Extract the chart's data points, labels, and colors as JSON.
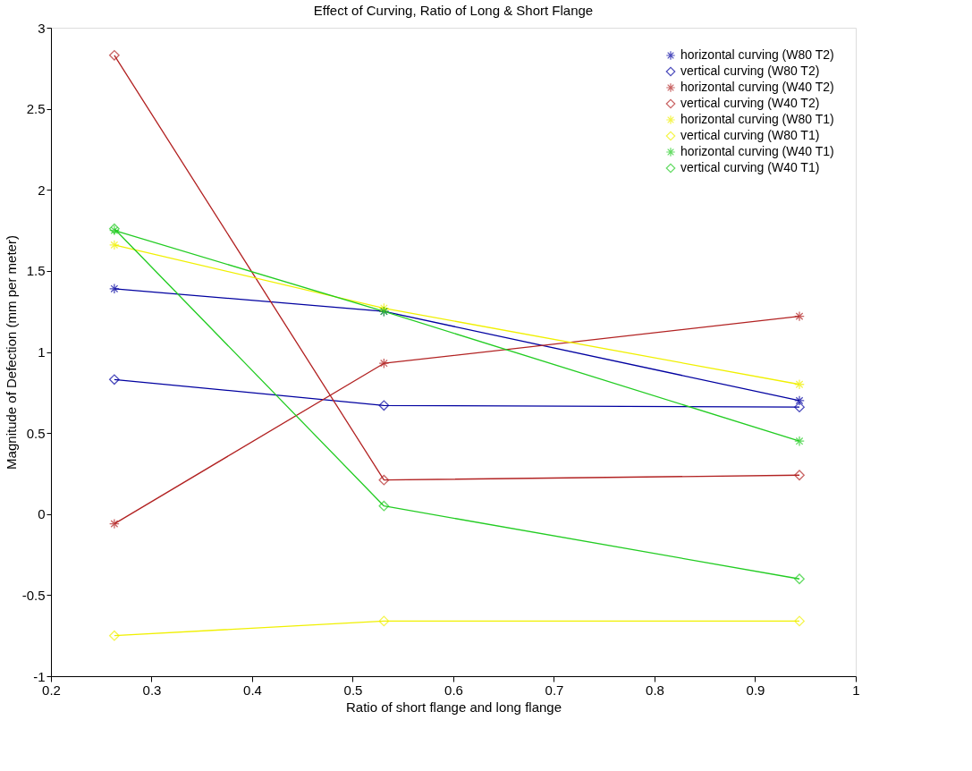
{
  "chart_data": {
    "type": "line",
    "title": "Effect of Curving, Ratio of Long & Short Flange",
    "xlabel": "Ratio of short flange and long flange",
    "ylabel": "Magnitude of Defection (mm per meter)",
    "x": [
      0.263,
      0.531,
      0.944
    ],
    "xlim": [
      0.2,
      1
    ],
    "xticks": [
      0.2,
      0.3,
      0.4,
      0.5,
      0.6,
      0.7,
      0.8,
      0.9,
      1
    ],
    "ylim": [
      -1,
      3
    ],
    "yticks": [
      -1,
      -0.5,
      0,
      0.5,
      1,
      1.5,
      2,
      2.5,
      3
    ],
    "grid": false,
    "legend": "top right",
    "line_style": "solid",
    "series": [
      {
        "name": "horizontal curving (W80 T2)",
        "color": "#0000a0",
        "marker": "cross",
        "values": [
          1.39,
          1.25,
          0.7
        ]
      },
      {
        "name": "vertical curving (W80 T2)",
        "color": "#0000a0",
        "marker": "diamond",
        "values": [
          0.83,
          0.67,
          0.66
        ]
      },
      {
        "name": "horizontal curving (W40 T2)",
        "color": "#b22222",
        "marker": "cross",
        "values": [
          -0.06,
          0.93,
          1.22
        ]
      },
      {
        "name": "vertical curving (W40 T2)",
        "color": "#b22222",
        "marker": "diamond",
        "values": [
          2.83,
          0.21,
          0.24
        ]
      },
      {
        "name": "horizontal curving (W80 T1)",
        "color": "#f0f000",
        "marker": "cross",
        "values": [
          1.66,
          1.27,
          0.8
        ]
      },
      {
        "name": "vertical curving (W80 T1)",
        "color": "#f0f000",
        "marker": "diamond",
        "values": [
          -0.75,
          -0.66,
          -0.66
        ]
      },
      {
        "name": "horizontal curving (W40 T1)",
        "color": "#22cc22",
        "marker": "cross",
        "values": [
          1.75,
          1.25,
          0.45
        ]
      },
      {
        "name": "vertical curving (W40 T1)",
        "color": "#22cc22",
        "marker": "diamond",
        "values": [
          1.76,
          0.05,
          -0.4
        ]
      }
    ]
  }
}
